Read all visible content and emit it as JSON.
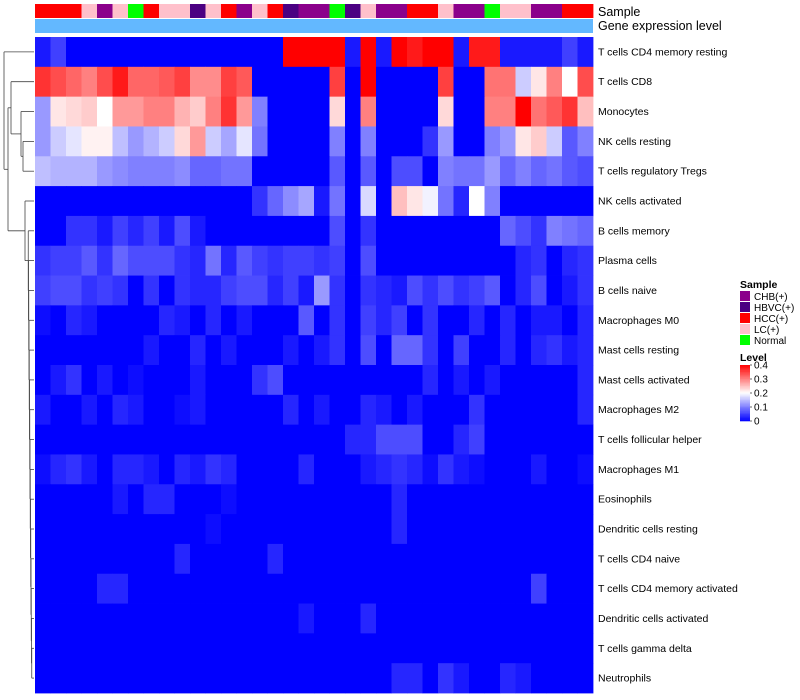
{
  "chart_data": {
    "type": "heatmap",
    "title": "",
    "annotation_tracks": [
      "Sample",
      "Gene expression level"
    ],
    "sample_groups": [
      "CHB(+)",
      "HBVC(+)",
      "HCC(+)",
      "LC(+)",
      "Normal"
    ],
    "sample_colors": {
      "CHB(+)": "#8B008B",
      "HBVC(+)": "#4B0082",
      "HCC(+)": "#FF0000",
      "LC(+)": "#FFC0CB",
      "Normal": "#00FF00"
    },
    "level_track_color": "#63B8FF",
    "columns": [
      "HCC(+)",
      "HCC(+)",
      "HCC(+)",
      "LC(+)",
      "CHB(+)",
      "LC(+)",
      "Normal",
      "HCC(+)",
      "LC(+)",
      "LC(+)",
      "HBVC(+)",
      "LC(+)",
      "HCC(+)",
      "CHB(+)",
      "LC(+)",
      "HCC(+)",
      "HBVC(+)",
      "CHB(+)",
      "CHB(+)",
      "Normal",
      "HBVC(+)",
      "LC(+)",
      "CHB(+)",
      "CHB(+)",
      "HCC(+)",
      "HCC(+)",
      "LC(+)",
      "CHB(+)",
      "CHB(+)",
      "Normal",
      "LC(+)",
      "LC(+)",
      "CHB(+)",
      "CHB(+)",
      "HCC(+)",
      "HCC(+)"
    ],
    "rows": [
      "T cells CD4 memory resting",
      "T cells CD8",
      "Monocytes",
      "NK cells resting",
      "T cells regulatory  Tregs",
      "NK cells activated",
      "B cells memory",
      "Plasma cells",
      "B cells naive",
      "Macrophages M0",
      "Mast cells resting",
      "Mast cells activated",
      "Macrophages M2",
      "T cells follicular helper",
      "Macrophages M1",
      "Eosinophils",
      "Dendritic cells resting",
      "T cells CD4 naive",
      "T cells CD4 memory activated",
      "Dendritic cells activated",
      "T cells gamma delta",
      "Neutrophils"
    ],
    "values": [
      [
        0.02,
        0.05,
        0.0,
        0.0,
        0.0,
        0.0,
        0.0,
        0.0,
        0.0,
        0.0,
        0.0,
        0.0,
        0.0,
        0.0,
        0.0,
        0.0,
        0.4,
        0.4,
        0.4,
        0.4,
        0.02,
        0.4,
        0.02,
        0.4,
        0.38,
        0.4,
        0.4,
        0.02,
        0.38,
        0.38,
        0.02,
        0.02,
        0.02,
        0.02,
        0.05,
        0.02
      ],
      [
        0.36,
        0.34,
        0.32,
        0.3,
        0.34,
        0.38,
        0.32,
        0.32,
        0.33,
        0.35,
        0.29,
        0.29,
        0.35,
        0.33,
        0.0,
        0.0,
        0.0,
        0.0,
        0.0,
        0.35,
        0.0,
        0.4,
        0.0,
        0.0,
        0.0,
        0.0,
        0.35,
        0.0,
        0.0,
        0.31,
        0.31,
        0.16,
        0.22,
        0.3,
        0.2,
        0.34
      ],
      [
        0.12,
        0.22,
        0.23,
        0.24,
        0.2,
        0.28,
        0.28,
        0.3,
        0.3,
        0.26,
        0.24,
        0.3,
        0.36,
        0.28,
        0.1,
        0.0,
        0.0,
        0.0,
        0.0,
        0.23,
        0.0,
        0.3,
        0.0,
        0.0,
        0.0,
        0.0,
        0.23,
        0.0,
        0.0,
        0.3,
        0.3,
        0.4,
        0.31,
        0.33,
        0.36,
        0.25
      ],
      [
        0.12,
        0.16,
        0.18,
        0.21,
        0.21,
        0.15,
        0.12,
        0.14,
        0.16,
        0.23,
        0.28,
        0.16,
        0.13,
        0.18,
        0.09,
        0.0,
        0.0,
        0.0,
        0.0,
        0.1,
        0.0,
        0.1,
        0.0,
        0.0,
        0.0,
        0.04,
        0.12,
        0.0,
        0.0,
        0.1,
        0.12,
        0.22,
        0.24,
        0.16,
        0.07,
        0.1
      ],
      [
        0.15,
        0.14,
        0.14,
        0.14,
        0.12,
        0.11,
        0.1,
        0.1,
        0.1,
        0.11,
        0.08,
        0.08,
        0.09,
        0.09,
        0.0,
        0.0,
        0.0,
        0.0,
        0.0,
        0.07,
        0.0,
        0.07,
        0.0,
        0.06,
        0.06,
        0.0,
        0.1,
        0.09,
        0.09,
        0.12,
        0.08,
        0.1,
        0.08,
        0.09,
        0.07,
        0.06
      ],
      [
        0.0,
        0.0,
        0.0,
        0.0,
        0.0,
        0.0,
        0.0,
        0.0,
        0.0,
        0.0,
        0.0,
        0.0,
        0.0,
        0.0,
        0.04,
        0.08,
        0.11,
        0.13,
        0.02,
        0.09,
        0.0,
        0.17,
        0.0,
        0.25,
        0.22,
        0.19,
        0.09,
        0.03,
        0.2,
        0.1,
        0.0,
        0.0,
        0.0,
        0.0,
        0.0,
        0.0
      ],
      [
        0.0,
        0.0,
        0.04,
        0.04,
        0.02,
        0.05,
        0.03,
        0.05,
        0.02,
        0.06,
        0.02,
        0.0,
        0.0,
        0.0,
        0.0,
        0.0,
        0.0,
        0.0,
        0.0,
        0.06,
        0.0,
        0.04,
        0.0,
        0.0,
        0.0,
        0.0,
        0.0,
        0.0,
        0.0,
        0.0,
        0.08,
        0.06,
        0.04,
        0.1,
        0.09,
        0.08
      ],
      [
        0.04,
        0.05,
        0.05,
        0.07,
        0.04,
        0.08,
        0.06,
        0.06,
        0.06,
        0.04,
        0.03,
        0.09,
        0.03,
        0.07,
        0.05,
        0.04,
        0.05,
        0.05,
        0.04,
        0.05,
        0.0,
        0.06,
        0.0,
        0.0,
        0.0,
        0.0,
        0.0,
        0.0,
        0.0,
        0.0,
        0.0,
        0.03,
        0.04,
        0.0,
        0.03,
        0.04
      ],
      [
        0.05,
        0.06,
        0.06,
        0.04,
        0.05,
        0.04,
        0.0,
        0.04,
        0.0,
        0.04,
        0.03,
        0.03,
        0.05,
        0.06,
        0.06,
        0.03,
        0.05,
        0.02,
        0.12,
        0.04,
        0.0,
        0.04,
        0.03,
        0.02,
        0.06,
        0.04,
        0.06,
        0.04,
        0.05,
        0.07,
        0.0,
        0.03,
        0.06,
        0.0,
        0.02,
        0.04
      ],
      [
        0.01,
        0.0,
        0.03,
        0.02,
        0.0,
        0.0,
        0.0,
        0.0,
        0.03,
        0.02,
        0.0,
        0.03,
        0.0,
        0.02,
        0.0,
        0.0,
        0.0,
        0.07,
        0.0,
        0.04,
        0.0,
        0.05,
        0.03,
        0.05,
        0.0,
        0.04,
        0.0,
        0.0,
        0.03,
        0.0,
        0.03,
        0.0,
        0.02,
        0.02,
        0.0,
        0.03
      ],
      [
        0.0,
        0.0,
        0.0,
        0.0,
        0.0,
        0.0,
        0.0,
        0.02,
        0.0,
        0.0,
        0.03,
        0.0,
        0.02,
        0.0,
        0.0,
        0.0,
        0.02,
        0.0,
        0.02,
        0.04,
        0.0,
        0.06,
        0.0,
        0.08,
        0.08,
        0.04,
        0.0,
        0.05,
        0.0,
        0.0,
        0.03,
        0.0,
        0.03,
        0.04,
        0.02,
        0.03
      ],
      [
        0.0,
        0.02,
        0.04,
        0.0,
        0.02,
        0.0,
        0.01,
        0.0,
        0.0,
        0.0,
        0.02,
        0.0,
        0.0,
        0.0,
        0.04,
        0.06,
        0.0,
        0.0,
        0.0,
        0.0,
        0.0,
        0.0,
        0.0,
        0.0,
        0.0,
        0.03,
        0.0,
        0.02,
        0.0,
        0.02,
        0.0,
        0.0,
        0.0,
        0.0,
        0.0,
        0.03
      ],
      [
        0.02,
        0.0,
        0.0,
        0.02,
        0.0,
        0.03,
        0.02,
        0.0,
        0.0,
        0.01,
        0.02,
        0.0,
        0.0,
        0.0,
        0.0,
        0.0,
        0.03,
        0.0,
        0.02,
        0.0,
        0.0,
        0.03,
        0.02,
        0.0,
        0.02,
        0.0,
        0.0,
        0.0,
        0.04,
        0.0,
        0.0,
        0.0,
        0.0,
        0.0,
        0.0,
        0.03
      ],
      [
        0.0,
        0.0,
        0.0,
        0.0,
        0.0,
        0.0,
        0.0,
        0.0,
        0.0,
        0.0,
        0.0,
        0.0,
        0.0,
        0.0,
        0.0,
        0.0,
        0.0,
        0.0,
        0.0,
        0.0,
        0.03,
        0.03,
        0.06,
        0.06,
        0.06,
        0.0,
        0.0,
        0.03,
        0.05,
        0.0,
        0.0,
        0.0,
        0.0,
        0.0,
        0.0,
        0.0
      ],
      [
        0.01,
        0.03,
        0.04,
        0.02,
        0.0,
        0.03,
        0.03,
        0.02,
        0.0,
        0.03,
        0.02,
        0.04,
        0.03,
        0.0,
        0.0,
        0.0,
        0.0,
        0.03,
        0.0,
        0.0,
        0.0,
        0.02,
        0.03,
        0.04,
        0.03,
        0.01,
        0.04,
        0.02,
        0.01,
        0.0,
        0.0,
        0.0,
        0.02,
        0.0,
        0.0,
        0.01
      ],
      [
        0.0,
        0.0,
        0.0,
        0.0,
        0.0,
        0.02,
        0.0,
        0.03,
        0.03,
        0.0,
        0.0,
        0.0,
        0.01,
        0.0,
        0.0,
        0.0,
        0.0,
        0.0,
        0.0,
        0.0,
        0.0,
        0.0,
        0.0,
        0.03,
        0.0,
        0.0,
        0.0,
        0.0,
        0.0,
        0.0,
        0.0,
        0.0,
        0.0,
        0.0,
        0.0,
        0.0
      ],
      [
        0.0,
        0.0,
        0.0,
        0.0,
        0.0,
        0.0,
        0.0,
        0.0,
        0.0,
        0.0,
        0.0,
        0.01,
        0.0,
        0.0,
        0.0,
        0.0,
        0.0,
        0.0,
        0.0,
        0.0,
        0.0,
        0.0,
        0.0,
        0.03,
        0.0,
        0.0,
        0.0,
        0.0,
        0.0,
        0.0,
        0.0,
        0.0,
        0.0,
        0.0,
        0.0,
        0.0
      ],
      [
        0.0,
        0.0,
        0.0,
        0.0,
        0.0,
        0.0,
        0.0,
        0.0,
        0.0,
        0.03,
        0.0,
        0.0,
        0.0,
        0.0,
        0.0,
        0.03,
        0.0,
        0.0,
        0.0,
        0.0,
        0.0,
        0.0,
        0.0,
        0.0,
        0.0,
        0.0,
        0.0,
        0.0,
        0.0,
        0.0,
        0.0,
        0.0,
        0.0,
        0.0,
        0.0,
        0.0
      ],
      [
        0.0,
        0.0,
        0.0,
        0.0,
        0.03,
        0.03,
        0.0,
        0.0,
        0.0,
        0.0,
        0.0,
        0.0,
        0.0,
        0.0,
        0.0,
        0.0,
        0.0,
        0.0,
        0.0,
        0.0,
        0.0,
        0.0,
        0.0,
        0.0,
        0.0,
        0.0,
        0.0,
        0.0,
        0.0,
        0.0,
        0.0,
        0.0,
        0.05,
        0.0,
        0.0,
        0.0
      ],
      [
        0.0,
        0.0,
        0.0,
        0.0,
        0.0,
        0.0,
        0.0,
        0.0,
        0.0,
        0.0,
        0.0,
        0.0,
        0.0,
        0.0,
        0.0,
        0.0,
        0.0,
        0.02,
        0.0,
        0.0,
        0.0,
        0.03,
        0.0,
        0.0,
        0.0,
        0.0,
        0.0,
        0.0,
        0.0,
        0.0,
        0.0,
        0.0,
        0.0,
        0.0,
        0.0,
        0.0
      ],
      [
        0.0,
        0.0,
        0.0,
        0.0,
        0.0,
        0.0,
        0.0,
        0.0,
        0.0,
        0.0,
        0.0,
        0.0,
        0.0,
        0.0,
        0.0,
        0.0,
        0.0,
        0.0,
        0.0,
        0.0,
        0.0,
        0.0,
        0.0,
        0.0,
        0.0,
        0.0,
        0.0,
        0.0,
        0.0,
        0.0,
        0.0,
        0.0,
        0.0,
        0.0,
        0.0,
        0.0
      ],
      [
        0.0,
        0.0,
        0.0,
        0.0,
        0.0,
        0.0,
        0.0,
        0.0,
        0.0,
        0.0,
        0.0,
        0.0,
        0.0,
        0.0,
        0.0,
        0.0,
        0.0,
        0.0,
        0.0,
        0.0,
        0.0,
        0.0,
        0.0,
        0.03,
        0.03,
        0.0,
        0.04,
        0.02,
        0.0,
        0.0,
        0.03,
        0.02,
        0.0,
        0.0,
        0.0,
        0.0
      ]
    ],
    "color_scale": {
      "min": 0,
      "max": 0.4,
      "low": "#0000FF",
      "mid": "#FFFFFF",
      "high": "#FF0000",
      "mid_value": 0.2
    },
    "legend": {
      "sample_title": "Sample",
      "level_title": "Level",
      "level_ticks": [
        "0.4",
        "0.3",
        "0.2",
        "0.1",
        "0"
      ]
    }
  }
}
